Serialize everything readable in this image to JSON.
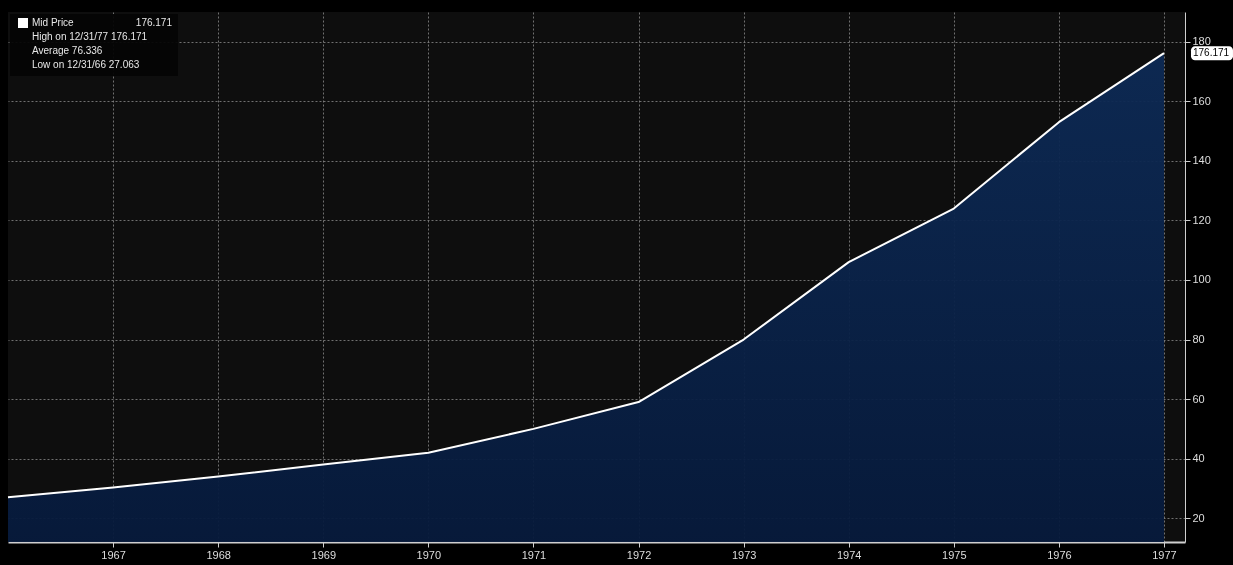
{
  "chart_data": {
    "type": "area",
    "x": [
      1966,
      1967,
      1968,
      1969,
      1970,
      1971,
      1972,
      1973,
      1974,
      1975,
      1976,
      1977
    ],
    "series": [
      {
        "name": "Mid Price",
        "color": "#ffffff",
        "values": [
          27.063,
          30.3,
          34,
          38,
          42,
          50,
          59,
          80,
          106,
          124,
          153,
          176.171
        ]
      }
    ],
    "xlim": [
      1966,
      1977.2
    ],
    "xticks": [
      1967,
      1968,
      1969,
      1970,
      1971,
      1972,
      1973,
      1974,
      1975,
      1976,
      1977
    ],
    "ylim": [
      12,
      190
    ],
    "yticks": [
      20,
      40,
      60,
      80,
      100,
      120,
      140,
      160,
      180
    ],
    "grid": true,
    "legend": "top left",
    "annotations": [
      "176.171",
      "High on 12/31/77 176.171",
      "Average 76.336",
      "Low on 12/31/66 27.063",
      {
        "text": "176.171",
        "x": 1977,
        "y": 176.171
      }
    ]
  }
}
